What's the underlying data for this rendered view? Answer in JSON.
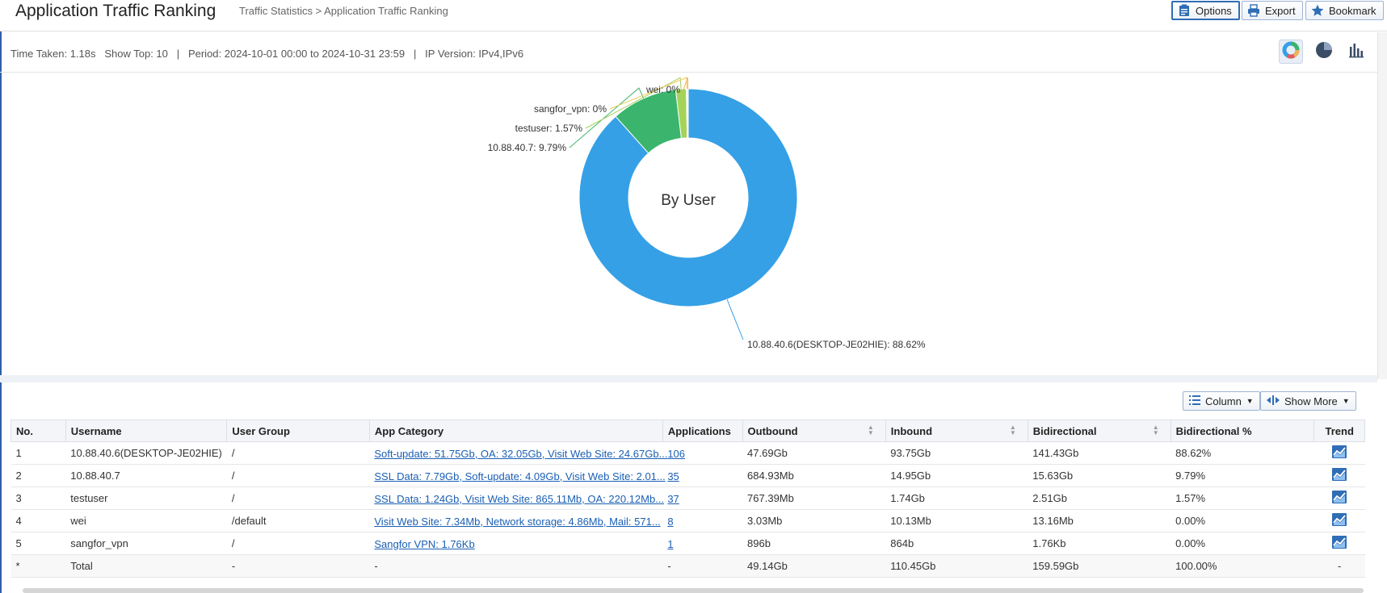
{
  "header": {
    "title": "Application Traffic Ranking",
    "breadcrumb": "Traffic Statistics > Application Traffic Ranking",
    "buttons": {
      "options": "Options",
      "export": "Export",
      "bookmark": "Bookmark"
    }
  },
  "info": {
    "time_taken": "Time Taken: 1.18s",
    "show_top": "Show Top: 10",
    "period": "Period: 2024-10-01 00:00 to 2024-10-31 23:59",
    "ip_version": "IP Version: IPv4,IPv6",
    "chart_buttons": [
      "donut-chart-icon",
      "pie-chart-icon",
      "bar-chart-icon"
    ]
  },
  "chart_data": {
    "type": "pie",
    "center_label": "By User",
    "slices": [
      {
        "label": "10.88.40.6(DESKTOP-JE02HIE)",
        "value": 88.62,
        "display": "10.88.40.6(DESKTOP-JE02HIE): 88.62%",
        "color": "#35a0e6"
      },
      {
        "label": "10.88.40.7",
        "value": 9.79,
        "display": "10.88.40.7: 9.79%",
        "color": "#3bb56d"
      },
      {
        "label": "testuser",
        "value": 1.57,
        "display": "testuser: 1.57%",
        "color": "#a5d35a"
      },
      {
        "label": "sangfor_vpn",
        "value": 0.0,
        "display": "sangfor_vpn: 0%",
        "color": "#f0c95b"
      },
      {
        "label": "wei",
        "value": 0.0,
        "display": "wei: 0%",
        "color": "#f0b25b"
      }
    ]
  },
  "table_controls": {
    "column": "Column",
    "show_more": "Show More"
  },
  "table": {
    "headers": [
      "No.",
      "Username",
      "User Group",
      "App Category",
      "Applications",
      "Outbound",
      "Inbound",
      "Bidirectional",
      "Bidirectional %",
      "Trend"
    ],
    "rows": [
      {
        "no": "1",
        "username": "10.88.40.6(DESKTOP-JE02HIE)",
        "group": "/",
        "category": "Soft-update: 51.75Gb, OA: 32.05Gb, Visit Web Site: 24.67Gb...",
        "apps": "106",
        "outbound": "47.69Gb",
        "inbound": "93.75Gb",
        "bidir": "141.43Gb",
        "pct": "88.62%"
      },
      {
        "no": "2",
        "username": "10.88.40.7",
        "group": "/",
        "category": "SSL Data: 7.79Gb, Soft-update: 4.09Gb, Visit Web Site: 2.01...",
        "apps": "35",
        "outbound": "684.93Mb",
        "inbound": "14.95Gb",
        "bidir": "15.63Gb",
        "pct": "9.79%"
      },
      {
        "no": "3",
        "username": "testuser",
        "group": "/",
        "category": "SSL Data: 1.24Gb, Visit Web Site: 865.11Mb, OA: 220.12Mb...",
        "apps": "37",
        "outbound": "767.39Mb",
        "inbound": "1.74Gb",
        "bidir": "2.51Gb",
        "pct": "1.57%"
      },
      {
        "no": "4",
        "username": "wei",
        "group": "/default",
        "category": "Visit Web Site: 7.34Mb, Network storage: 4.86Mb, Mail: 571...",
        "apps": "8",
        "outbound": "3.03Mb",
        "inbound": "10.13Mb",
        "bidir": "13.16Mb",
        "pct": "0.00%"
      },
      {
        "no": "5",
        "username": "sangfor_vpn",
        "group": "/",
        "category": "Sangfor VPN: 1.76Kb",
        "apps": "1",
        "outbound": "896b",
        "inbound": "864b",
        "bidir": "1.76Kb",
        "pct": "0.00%"
      }
    ],
    "total": {
      "no": "*",
      "username": "Total",
      "group": "-",
      "category": "-",
      "apps": "-",
      "outbound": "49.14Gb",
      "inbound": "110.45Gb",
      "bidir": "159.59Gb",
      "pct": "100.00%",
      "trend": "-"
    }
  }
}
